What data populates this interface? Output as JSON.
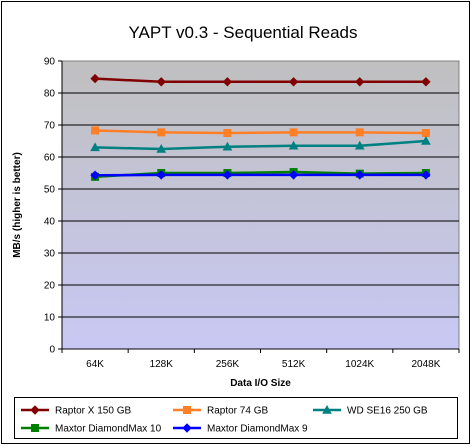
{
  "chart_data": {
    "type": "line",
    "title": "YAPT v0.3 - Sequential Reads",
    "xlabel": "Data I/O Size",
    "ylabel": "MB/s (higher is better)",
    "categories": [
      "64K",
      "128K",
      "256K",
      "512K",
      "1024K",
      "2048K"
    ],
    "ylim": [
      0,
      90
    ],
    "yticks": [
      0,
      10,
      20,
      30,
      40,
      50,
      60,
      70,
      80,
      90
    ],
    "grid": true,
    "legend_position": "bottom",
    "series": [
      {
        "name": "Raptor X 150 GB",
        "color": "#800000",
        "marker": "diamond",
        "values": [
          84.5,
          83.5,
          83.5,
          83.5,
          83.5,
          83.5
        ]
      },
      {
        "name": "Raptor 74 GB",
        "color": "#ff7f27",
        "marker": "square",
        "values": [
          68.3,
          67.7,
          67.5,
          67.7,
          67.7,
          67.5
        ]
      },
      {
        "name": "WD SE16 250 GB",
        "color": "#008080",
        "marker": "triangle",
        "values": [
          63.0,
          62.5,
          63.2,
          63.5,
          63.5,
          65.0
        ]
      },
      {
        "name": "Maxtor DiamondMax 10",
        "color": "#008000",
        "marker": "square",
        "values": [
          53.8,
          55.0,
          55.0,
          55.3,
          54.8,
          55.0
        ]
      },
      {
        "name": "Maxtor DiamondMax 9",
        "color": "#0000ff",
        "marker": "diamond",
        "values": [
          54.3,
          54.4,
          54.4,
          54.4,
          54.4,
          54.4
        ]
      }
    ]
  }
}
